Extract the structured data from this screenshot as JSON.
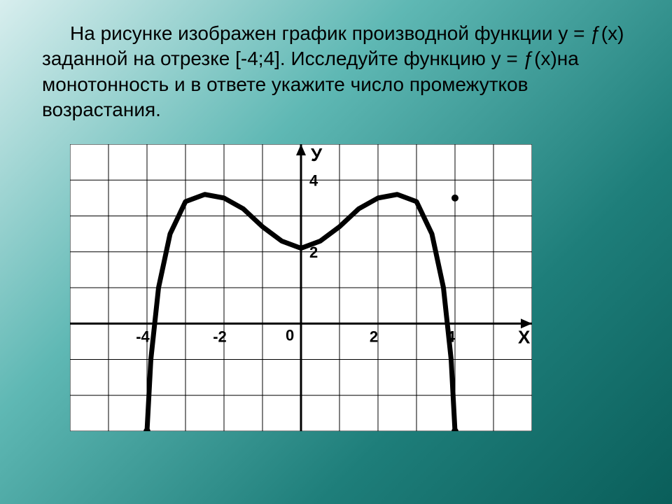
{
  "problem": {
    "text": "На рисунке изображен график производной функции y = ƒ(x) заданной на отрезке [-4;4]. Исследуйте функцию  y = ƒ(x)на монотонность и в ответе укажите число промежутков возрастания."
  },
  "chart": {
    "type": "line",
    "style": "hand-drawn",
    "background_color": "#ffffff",
    "grid_color": "#000000",
    "axis_color": "#000000",
    "curve_color": "#000000",
    "curve_width": 7,
    "grid_width": 1,
    "axis_width": 3,
    "xlim": [
      -6,
      6
    ],
    "ylim": [
      -3,
      5
    ],
    "xtick_step": 1,
    "ytick_step": 1,
    "x_label": "X",
    "y_label": "У",
    "origin_label": "0",
    "x_axis_ticks": [
      {
        "value": -4,
        "label": "-4"
      },
      {
        "value": -2,
        "label": "-2"
      },
      {
        "value": 2,
        "label": "2"
      },
      {
        "value": 4,
        "label": "4"
      }
    ],
    "y_axis_ticks": [
      {
        "value": 2,
        "label": "2"
      },
      {
        "value": 4,
        "label": "4"
      }
    ],
    "label_fontsize": 22,
    "curve_points": [
      {
        "x": -4.0,
        "y": -3.0
      },
      {
        "x": -3.9,
        "y": -1.0
      },
      {
        "x": -3.7,
        "y": 1.0
      },
      {
        "x": -3.4,
        "y": 2.5
      },
      {
        "x": -3.0,
        "y": 3.4
      },
      {
        "x": -2.5,
        "y": 3.6
      },
      {
        "x": -2.0,
        "y": 3.5
      },
      {
        "x": -1.5,
        "y": 3.2
      },
      {
        "x": -1.0,
        "y": 2.7
      },
      {
        "x": -0.5,
        "y": 2.3
      },
      {
        "x": 0.0,
        "y": 2.1
      },
      {
        "x": 0.5,
        "y": 2.3
      },
      {
        "x": 1.0,
        "y": 2.7
      },
      {
        "x": 1.5,
        "y": 3.2
      },
      {
        "x": 2.0,
        "y": 3.5
      },
      {
        "x": 2.5,
        "y": 3.6
      },
      {
        "x": 3.0,
        "y": 3.4
      },
      {
        "x": 3.4,
        "y": 2.5
      },
      {
        "x": 3.7,
        "y": 1.0
      },
      {
        "x": 3.9,
        "y": -1.0
      },
      {
        "x": 4.0,
        "y": -3.0
      }
    ],
    "markers": [
      {
        "x": -4,
        "y": -3
      },
      {
        "x": 4,
        "y": -3
      },
      {
        "x": 4,
        "y": 3.5
      }
    ]
  }
}
